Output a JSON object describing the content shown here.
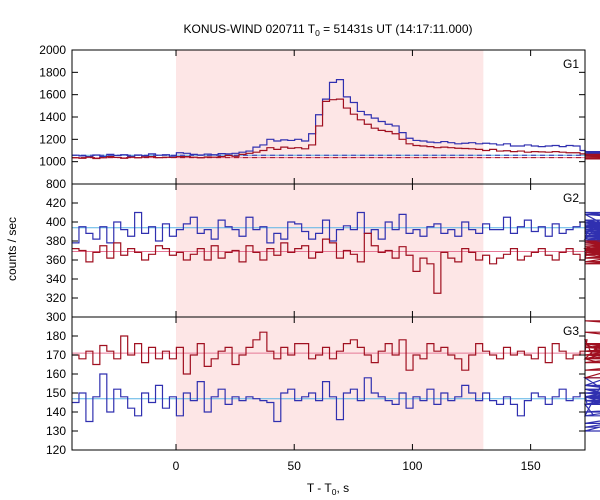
{
  "chart_data": {
    "type": "line",
    "title_prefix": "KONUS-WIND 020711 T",
    "title_sub": "0",
    "title_suffix": " = 51431s UT (14:17:11.000)",
    "ylabel": "counts / sec",
    "xlabel_prefix": "T - T",
    "xlabel_sub": "0",
    "xlabel_suffix": ", s",
    "xlim": [
      -44,
      173
    ],
    "x_ticks": [
      0,
      50,
      100,
      150
    ],
    "x_tick_labels": [
      "0",
      "50",
      "100",
      "150"
    ],
    "shaded_interval": [
      0,
      130
    ],
    "colors": {
      "blue": "#3030b0",
      "red": "#a01020",
      "light_blue": "#5ab4e6",
      "pink": "#e67896",
      "shade": "#fde6e6"
    },
    "panels": [
      {
        "name": "G1",
        "ylim": [
          800,
          2000
        ],
        "y_ticks": [
          800,
          1000,
          1200,
          1400,
          1600,
          1800,
          2000
        ],
        "y_tick_labels": [
          "800",
          "1000",
          "1200",
          "1400",
          "1600",
          "1800",
          "2000"
        ],
        "bin_width": 2.944,
        "series": [
          {
            "color": "blue",
            "values": [
              1058,
              1052,
              1045,
              1060,
              1047,
              1065,
              1055,
              1062,
              1048,
              1060,
              1053,
              1070,
              1058,
              1062,
              1049,
              1080,
              1075,
              1065,
              1060,
              1068,
              1062,
              1072,
              1070,
              1075,
              1085,
              1095,
              1130,
              1150,
              1200,
              1185,
              1195,
              1190,
              1200,
              1185,
              1250,
              1420,
              1560,
              1710,
              1735,
              1580,
              1530,
              1450,
              1420,
              1390,
              1360,
              1335,
              1320,
              1260,
              1210,
              1190,
              1185,
              1175,
              1170,
              1180,
              1170,
              1160,
              1165,
              1170,
              1160,
              1165,
              1160,
              1150,
              1160,
              1140,
              1140,
              1150,
              1140,
              1135,
              1140,
              1145,
              1135,
              1145,
              1140,
              1100,
              1080,
              1075,
              1070,
              1080,
              1090,
              1075,
              1075,
              1060,
              1060,
              1065,
              1060,
              1055,
              1055,
              1070,
              1060,
              1065,
              1060,
              1065,
              1070,
              1085,
              1080,
              1080,
              1075,
              1080,
              1070,
              1065,
              1060,
              1070,
              1065,
              1070,
              1065,
              1075,
              1070,
              1080,
              1070,
              1080,
              1070,
              1070,
              1070,
              1080,
              1070,
              1080,
              1070,
              1080,
              1070
            ]
          },
          {
            "color": "red",
            "values": [
              1035,
              1030,
              1040,
              1028,
              1035,
              1045,
              1038,
              1030,
              1040,
              1035,
              1042,
              1045,
              1036,
              1040,
              1038,
              1045,
              1045,
              1040,
              1035,
              1042,
              1040,
              1045,
              1055,
              1048,
              1065,
              1075,
              1085,
              1100,
              1125,
              1110,
              1130,
              1120,
              1125,
              1115,
              1150,
              1320,
              1540,
              1555,
              1560,
              1480,
              1425,
              1375,
              1335,
              1300,
              1280,
              1270,
              1250,
              1200,
              1160,
              1145,
              1140,
              1135,
              1125,
              1130,
              1125,
              1120,
              1118,
              1115,
              1110,
              1100,
              1110,
              1095,
              1098,
              1090,
              1095,
              1085,
              1090,
              1088,
              1085,
              1090,
              1085,
              1080,
              1080,
              1070,
              1065,
              1060,
              1058,
              1065,
              1060,
              1055,
              1050,
              1045,
              1055,
              1050,
              1040,
              1045,
              1038,
              1042,
              1030,
              1040,
              1035,
              1050,
              1045,
              1030,
              1040,
              1025,
              1045,
              1030,
              1040,
              1035,
              1030,
              1040,
              1035,
              1040,
              1035,
              1045,
              1030,
              1040,
              1035,
              1042,
              1036,
              1040,
              1034,
              1040,
              1036,
              1045,
              1038,
              1040,
              1036
            ]
          },
          {
            "color": "light_blue",
            "baseline": 1058
          },
          {
            "color": "pink",
            "baseline": 1036
          }
        ]
      },
      {
        "name": "G2",
        "ylim": [
          300,
          440
        ],
        "y_ticks": [
          300,
          320,
          340,
          360,
          380,
          400,
          420
        ],
        "y_tick_labels": [
          "300",
          "320",
          "340",
          "360",
          "380",
          "400",
          "420"
        ],
        "bin_width": 2.944,
        "series": [
          {
            "color": "blue",
            "values": [
              378,
              395,
              388,
              382,
              395,
              378,
              400,
              392,
              385,
              410,
              388,
              395,
              380,
              398,
              385,
              392,
              398,
              405,
              388,
              392,
              382,
              402,
              395,
              392,
              385,
              405,
              392,
              395,
              378,
              388,
              382,
              400,
              398,
              390,
              382,
              388,
              402,
              380,
              392,
              396,
              392,
              410,
              388,
              392,
              382,
              400,
              392,
              408,
              388,
              392,
              385,
              395,
              398,
              388,
              392,
              385,
              400,
              392,
              388,
              398,
              392,
              392,
              405,
              388,
              395,
              402,
              390,
              395,
              385,
              398,
              388,
              392,
              395,
              400,
              382,
              392,
              388,
              400,
              394,
              408,
              384,
              388,
              392,
              396,
              402,
              388,
              394,
              380,
              398,
              385,
              386,
              395,
              382,
              388,
              400,
              392,
              388,
              396,
              385,
              396,
              385,
              395,
              382,
              398,
              392,
              390,
              392,
              380,
              392,
              386,
              378,
              402,
              398,
              408,
              385,
              388,
              410,
              380,
              392
            ]
          },
          {
            "color": "red",
            "values": [
              372,
              370,
              358,
              368,
              375,
              362,
              378,
              365,
              372,
              368,
              360,
              366,
              375,
              372,
              365,
              368,
              360,
              366,
              372,
              360,
              375,
              362,
              368,
              370,
              358,
              375,
              368,
              360,
              372,
              365,
              378,
              368,
              372,
              375,
              362,
              368,
              382,
              378,
              362,
              370,
              366,
              358,
              388,
              375,
              368,
              370,
              362,
              374,
              365,
              348,
              362,
              356,
              325,
              368,
              362,
              358,
              372,
              368,
              360,
              365,
              356,
              362,
              366,
              372,
              360,
              364,
              368,
              372,
              365,
              360,
              368,
              372,
              366,
              360,
              372,
              365,
              368,
              370,
              374,
              362,
              368,
              376,
              372,
              358,
              370,
              366,
              362,
              372,
              368,
              380,
              366,
              372,
              378,
              368,
              370,
              362,
              378,
              368,
              356,
              368,
              372,
              362,
              378,
              376,
              358,
              362,
              372,
              374,
              366,
              368,
              372,
              368,
              376,
              362,
              372,
              366,
              368,
              374,
              366
            ]
          },
          {
            "color": "light_blue",
            "baseline": 394
          },
          {
            "color": "pink",
            "baseline": 369
          }
        ]
      },
      {
        "name": "G3",
        "ylim": [
          120,
          190
        ],
        "y_ticks": [
          120,
          130,
          140,
          150,
          160,
          170,
          180
        ],
        "y_tick_labels": [
          "120",
          "130",
          "140",
          "150",
          "160",
          "170",
          "180"
        ],
        "bin_width": 2.944,
        "series": [
          {
            "color": "blue",
            "values": [
              145,
              150,
              135,
              148,
              160,
              140,
              152,
              148,
              142,
              138,
              150,
              145,
              154,
              142,
              148,
              138,
              150,
              146,
              156,
              140,
              148,
              152,
              144,
              148,
              146,
              148,
              147,
              146,
              145,
              135,
              150,
              152,
              146,
              148,
              150,
              146,
              156,
              148,
              136,
              150,
              152,
              146,
              158,
              150,
              148,
              146,
              144,
              150,
              142,
              148,
              146,
              152,
              144,
              150,
              146,
              148,
              154,
              150,
              146,
              150,
              146,
              144,
              148,
              144,
              138,
              146,
              150,
              148,
              144,
              148,
              152,
              146,
              148,
              150,
              144,
              138,
              154,
              158,
              148,
              152,
              146,
              144,
              148,
              150,
              152,
              144,
              154,
              148,
              150,
              146,
              148,
              130,
              148,
              154,
              150,
              146,
              138,
              150,
              146,
              148,
              134,
              150,
              140,
              146,
              148,
              132,
              150,
              152,
              146,
              144,
              150,
              148,
              140,
              146,
              152,
              150,
              144,
              148,
              146
            ]
          },
          {
            "color": "red",
            "values": [
              170,
              168,
              172,
              165,
              175,
              172,
              168,
              180,
              170,
              176,
              166,
              174,
              168,
              172,
              168,
              174,
              160,
              170,
              176,
              164,
              168,
              172,
              174,
              165,
              170,
              174,
              178,
              182,
              172,
              168,
              174,
              170,
              176,
              176,
              168,
              170,
              174,
              168,
              172,
              176,
              178,
              174,
              170,
              166,
              172,
              176,
              170,
              178,
              162,
              170,
              168,
              176,
              172,
              174,
              170,
              168,
              162,
              170,
              176,
              172,
              170,
              168,
              174,
              170,
              172,
              170,
              168,
              174,
              166,
              176,
              172,
              168,
              170,
              172,
              178,
              168,
              176,
              170,
              172,
              174,
              176,
              172,
              170,
              168,
              158,
              170,
              176,
              170,
              168,
              174,
              172,
              166,
              174,
              170,
              172,
              168,
              188,
              182,
              172,
              168,
              174,
              176,
              172,
              166,
              170,
              168,
              174,
              166,
              170,
              172,
              168,
              174,
              170,
              162,
              176,
              168,
              172,
              170,
              176
            ]
          },
          {
            "color": "light_blue",
            "baseline": 147
          },
          {
            "color": "pink",
            "baseline": 171
          }
        ]
      }
    ]
  }
}
